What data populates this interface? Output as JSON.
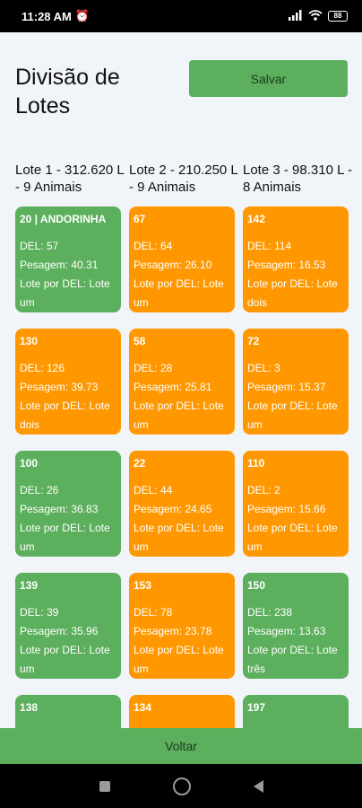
{
  "status": {
    "time": "11:28 AM",
    "battery": "88"
  },
  "header": {
    "title": "Divisão de Lotes",
    "save_label": "Salvar"
  },
  "columns": [
    {
      "header": "Lote 1 - 312.620 L - 9 Animais"
    },
    {
      "header": "Lote 2 - 210.250 L - 9 Animais"
    },
    {
      "header": "Lote 3 - 98.310 L - 8 Animais"
    }
  ],
  "cards": [
    {
      "title": "20 | ANDORINHA",
      "del": "DEL: 57",
      "pesagem": "Pesagem: 40.31",
      "lote": "Lote por DEL: Lote um",
      "color": "green"
    },
    {
      "title": "67",
      "del": "DEL: 64",
      "pesagem": "Pesagem: 26.10",
      "lote": "Lote por DEL: Lote um",
      "color": "orange"
    },
    {
      "title": "142",
      "del": "DEL: 114",
      "pesagem": "Pesagem: 16.53",
      "lote": "Lote por DEL: Lote dois",
      "color": "orange"
    },
    {
      "title": "130",
      "del": "DEL: 126",
      "pesagem": "Pesagem: 39.73",
      "lote": "Lote por DEL: Lote dois",
      "color": "orange"
    },
    {
      "title": "58",
      "del": "DEL: 28",
      "pesagem": "Pesagem: 25.81",
      "lote": "Lote por DEL: Lote um",
      "color": "orange"
    },
    {
      "title": "72",
      "del": "DEL: 3",
      "pesagem": "Pesagem: 15.37",
      "lote": "Lote por DEL: Lote um",
      "color": "orange"
    },
    {
      "title": "100",
      "del": "DEL: 26",
      "pesagem": "Pesagem: 36.83",
      "lote": "Lote por DEL: Lote um",
      "color": "green"
    },
    {
      "title": "22",
      "del": "DEL: 44",
      "pesagem": "Pesagem: 24.65",
      "lote": "Lote por DEL: Lote um",
      "color": "orange"
    },
    {
      "title": "110",
      "del": "DEL: 2",
      "pesagem": "Pesagem: 15.66",
      "lote": "Lote por DEL: Lote um",
      "color": "orange"
    },
    {
      "title": "139",
      "del": "DEL: 39",
      "pesagem": "Pesagem: 35.96",
      "lote": "Lote por DEL: Lote um",
      "color": "green"
    },
    {
      "title": "153",
      "del": "DEL: 78",
      "pesagem": "Pesagem: 23.78",
      "lote": "Lote por DEL: Lote um",
      "color": "orange"
    },
    {
      "title": "150",
      "del": "DEL: 238",
      "pesagem": "Pesagem: 13.63",
      "lote": "Lote por DEL: Lote três",
      "color": "green"
    },
    {
      "title": "138",
      "del": "",
      "pesagem": "",
      "lote": "",
      "color": "green"
    },
    {
      "title": "134",
      "del": "",
      "pesagem": "",
      "lote": "",
      "color": "orange"
    },
    {
      "title": "197",
      "del": "",
      "pesagem": "",
      "lote": "",
      "color": "green"
    }
  ],
  "footer": {
    "back_label": "Voltar"
  },
  "colors": {
    "green": "#5cb05d",
    "orange": "#ff9800",
    "background": "#f1f4f9"
  },
  "icons": [
    "alarm-icon",
    "signal-icon",
    "wifi-icon",
    "battery-icon",
    "recents-icon",
    "home-icon",
    "back-icon"
  ]
}
